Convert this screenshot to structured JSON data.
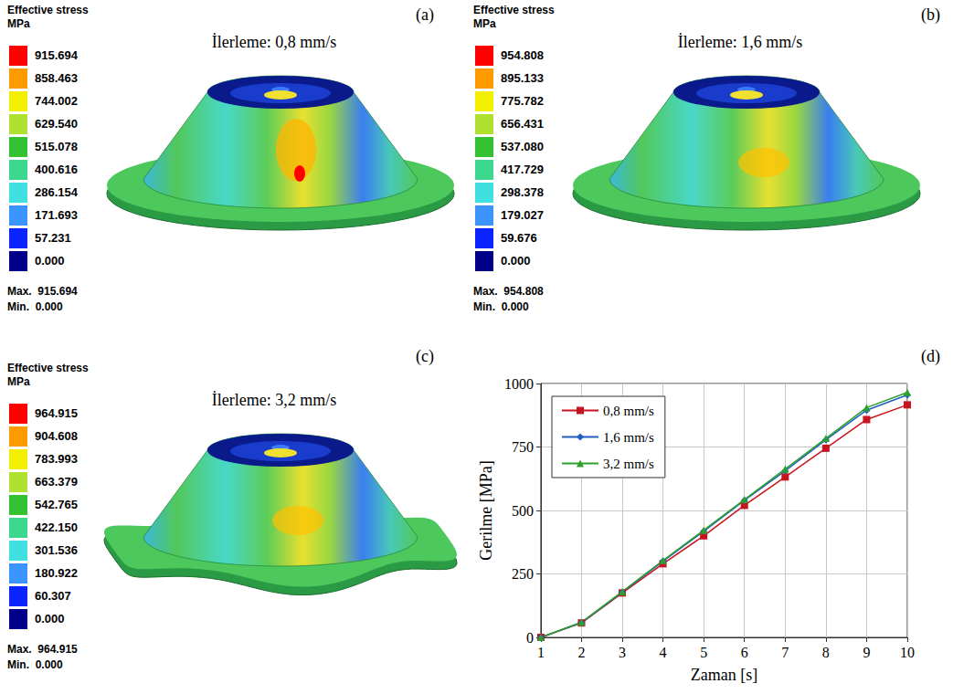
{
  "panels": [
    {
      "letter": "(a)",
      "title": "İlerleme: 0,8 mm/s",
      "legend_title": "Effective stress",
      "legend_unit": "MPa",
      "levels": [
        915.694,
        858.463,
        744.002,
        {
          "value": 629.54,
          "label": "629.540"
        },
        515.078,
        400.616,
        286.154,
        171.693,
        57.231,
        {
          "value": 0,
          "label": "0.000"
        }
      ],
      "colors": [
        "#ff0000",
        "#ff9a00",
        "#f2f000",
        "#b0e030",
        "#34c234",
        "#3cd890",
        "#40e0e0",
        "#3c94ff",
        "#0a24ff",
        "#000088"
      ],
      "max_label": "Max.",
      "max": 915.694,
      "min_label": "Min.",
      "min": {
        "value": 0,
        "label": "0.000"
      }
    },
    {
      "letter": "(b)",
      "title": "İlerleme: 1,6 mm/s",
      "legend_title": "Effective stress",
      "legend_unit": "MPa",
      "levels": [
        954.808,
        895.133,
        775.782,
        656.431,
        {
          "value": 537.08,
          "label": "537.080"
        },
        417.729,
        298.378,
        179.027,
        59.676,
        {
          "value": 0,
          "label": "0.000"
        }
      ],
      "colors": [
        "#ff0000",
        "#ff9a00",
        "#f2f000",
        "#b0e030",
        "#34c234",
        "#3cd890",
        "#40e0e0",
        "#3c94ff",
        "#0a24ff",
        "#000088"
      ],
      "max_label": "Max.",
      "max": 954.808,
      "min_label": "Min.",
      "min": {
        "value": 0,
        "label": "0.000"
      }
    },
    {
      "letter": "(c)",
      "title": "İlerleme: 3,2 mm/s",
      "legend_title": "Effective stress",
      "legend_unit": "MPa",
      "levels": [
        964.915,
        904.608,
        783.993,
        663.379,
        542.765,
        {
          "value": 422.15,
          "label": "422.150"
        },
        301.536,
        180.922,
        60.307,
        {
          "value": 0,
          "label": "0.000"
        }
      ],
      "colors": [
        "#ff0000",
        "#ff9a00",
        "#f2f000",
        "#b0e030",
        "#34c234",
        "#3cd890",
        "#40e0e0",
        "#3c94ff",
        "#0a24ff",
        "#000088"
      ],
      "max_label": "Max.",
      "max": 964.915,
      "min_label": "Min.",
      "min": {
        "value": 0,
        "label": "0.000"
      }
    }
  ],
  "chart_data": {
    "type": "line",
    "letter": "(d)",
    "xlabel": "Zaman [s]",
    "ylabel": "Gerilme [MPa]",
    "x": [
      1,
      2,
      3,
      4,
      5,
      6,
      7,
      8,
      9,
      10
    ],
    "xlim": [
      1,
      10
    ],
    "xticks": [
      1,
      2,
      3,
      4,
      5,
      6,
      7,
      8,
      9,
      10
    ],
    "ylim": [
      0,
      1000
    ],
    "yticks": [
      0,
      250,
      500,
      750,
      1000
    ],
    "grid": true,
    "legend": "upper left",
    "series": [
      {
        "name": "0,8 mm/s",
        "color": "#c8141e",
        "marker": "square",
        "values": [
          0,
          57,
          175,
          290,
          400,
          520,
          632,
          745,
          858,
          916
        ]
      },
      {
        "name": "1,6 mm/s",
        "color": "#1f5fbf",
        "marker": "diamond",
        "values": [
          0,
          58,
          178,
          300,
          418,
          540,
          656,
          778,
          895,
          955
        ]
      },
      {
        "name": "3,2 mm/s",
        "color": "#2ca02c",
        "marker": "triangle",
        "values": [
          0,
          60,
          180,
          303,
          422,
          543,
          663,
          784,
          905,
          965
        ]
      }
    ]
  }
}
